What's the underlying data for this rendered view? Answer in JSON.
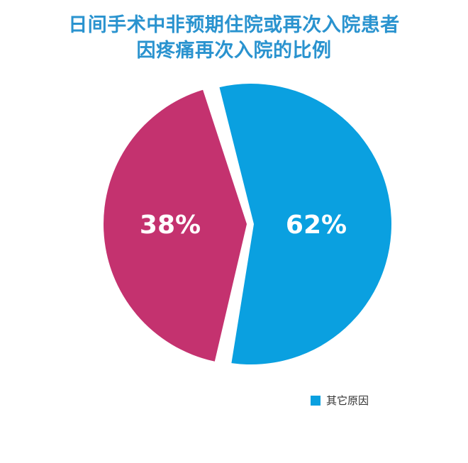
{
  "chart_data": {
    "type": "pie",
    "title_lines": [
      "日间手术中非预期住院或再次入院患者",
      "因疼痛再次入院的比例"
    ],
    "slices": [
      {
        "label": "38%",
        "value": 38,
        "color": "#c4326f"
      },
      {
        "label": "62%",
        "value": 62,
        "color": "#0aa0e0"
      }
    ],
    "legend": [
      {
        "name": "其它原因",
        "color": "#0aa0e0"
      }
    ],
    "legend_position": "bottom-right"
  }
}
